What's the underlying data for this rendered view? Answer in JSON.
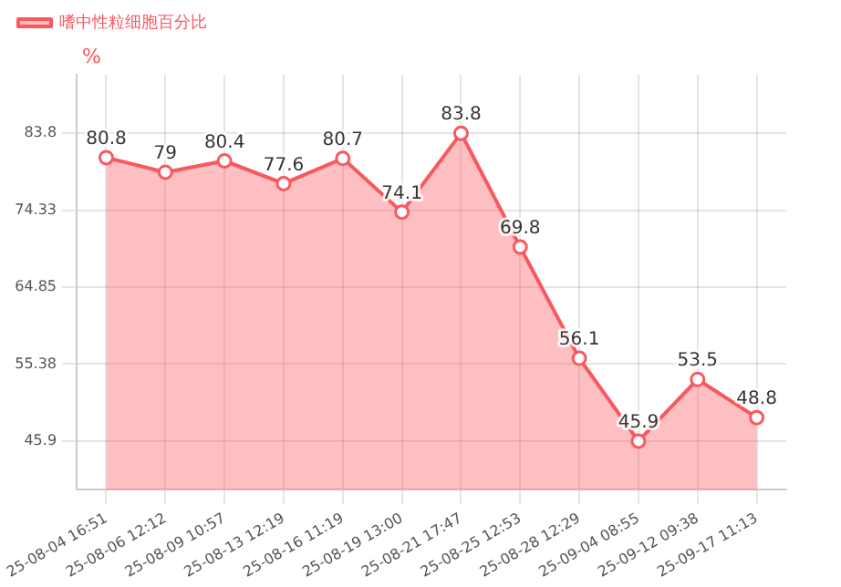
{
  "chart_data": {
    "type": "area",
    "ylabel": "%",
    "legend": "top left",
    "grid": true,
    "marker": "circle",
    "data_labels": true,
    "categories": [
      "25-08-04 16:51",
      "25-08-06 12:12",
      "25-08-09 10:57",
      "25-08-13 12:19",
      "25-08-16 11:19",
      "25-08-19 13:00",
      "25-08-21 17:47",
      "25-08-25 12:53",
      "25-08-28 12:29",
      "25-09-04 08:55",
      "25-09-12 09:38",
      "25-09-17 11:13"
    ],
    "series": [
      {
        "name": "嗜中性粒细胞百分比",
        "color": "#f9585f",
        "values": [
          80.8,
          79,
          80.4,
          77.6,
          80.7,
          74.1,
          83.8,
          69.8,
          56.1,
          45.9,
          53.5,
          48.8
        ]
      }
    ],
    "ylim": [
      39.9,
      91
    ],
    "yticks": [
      45.9,
      55.38,
      64.85,
      74.33,
      83.8
    ]
  }
}
